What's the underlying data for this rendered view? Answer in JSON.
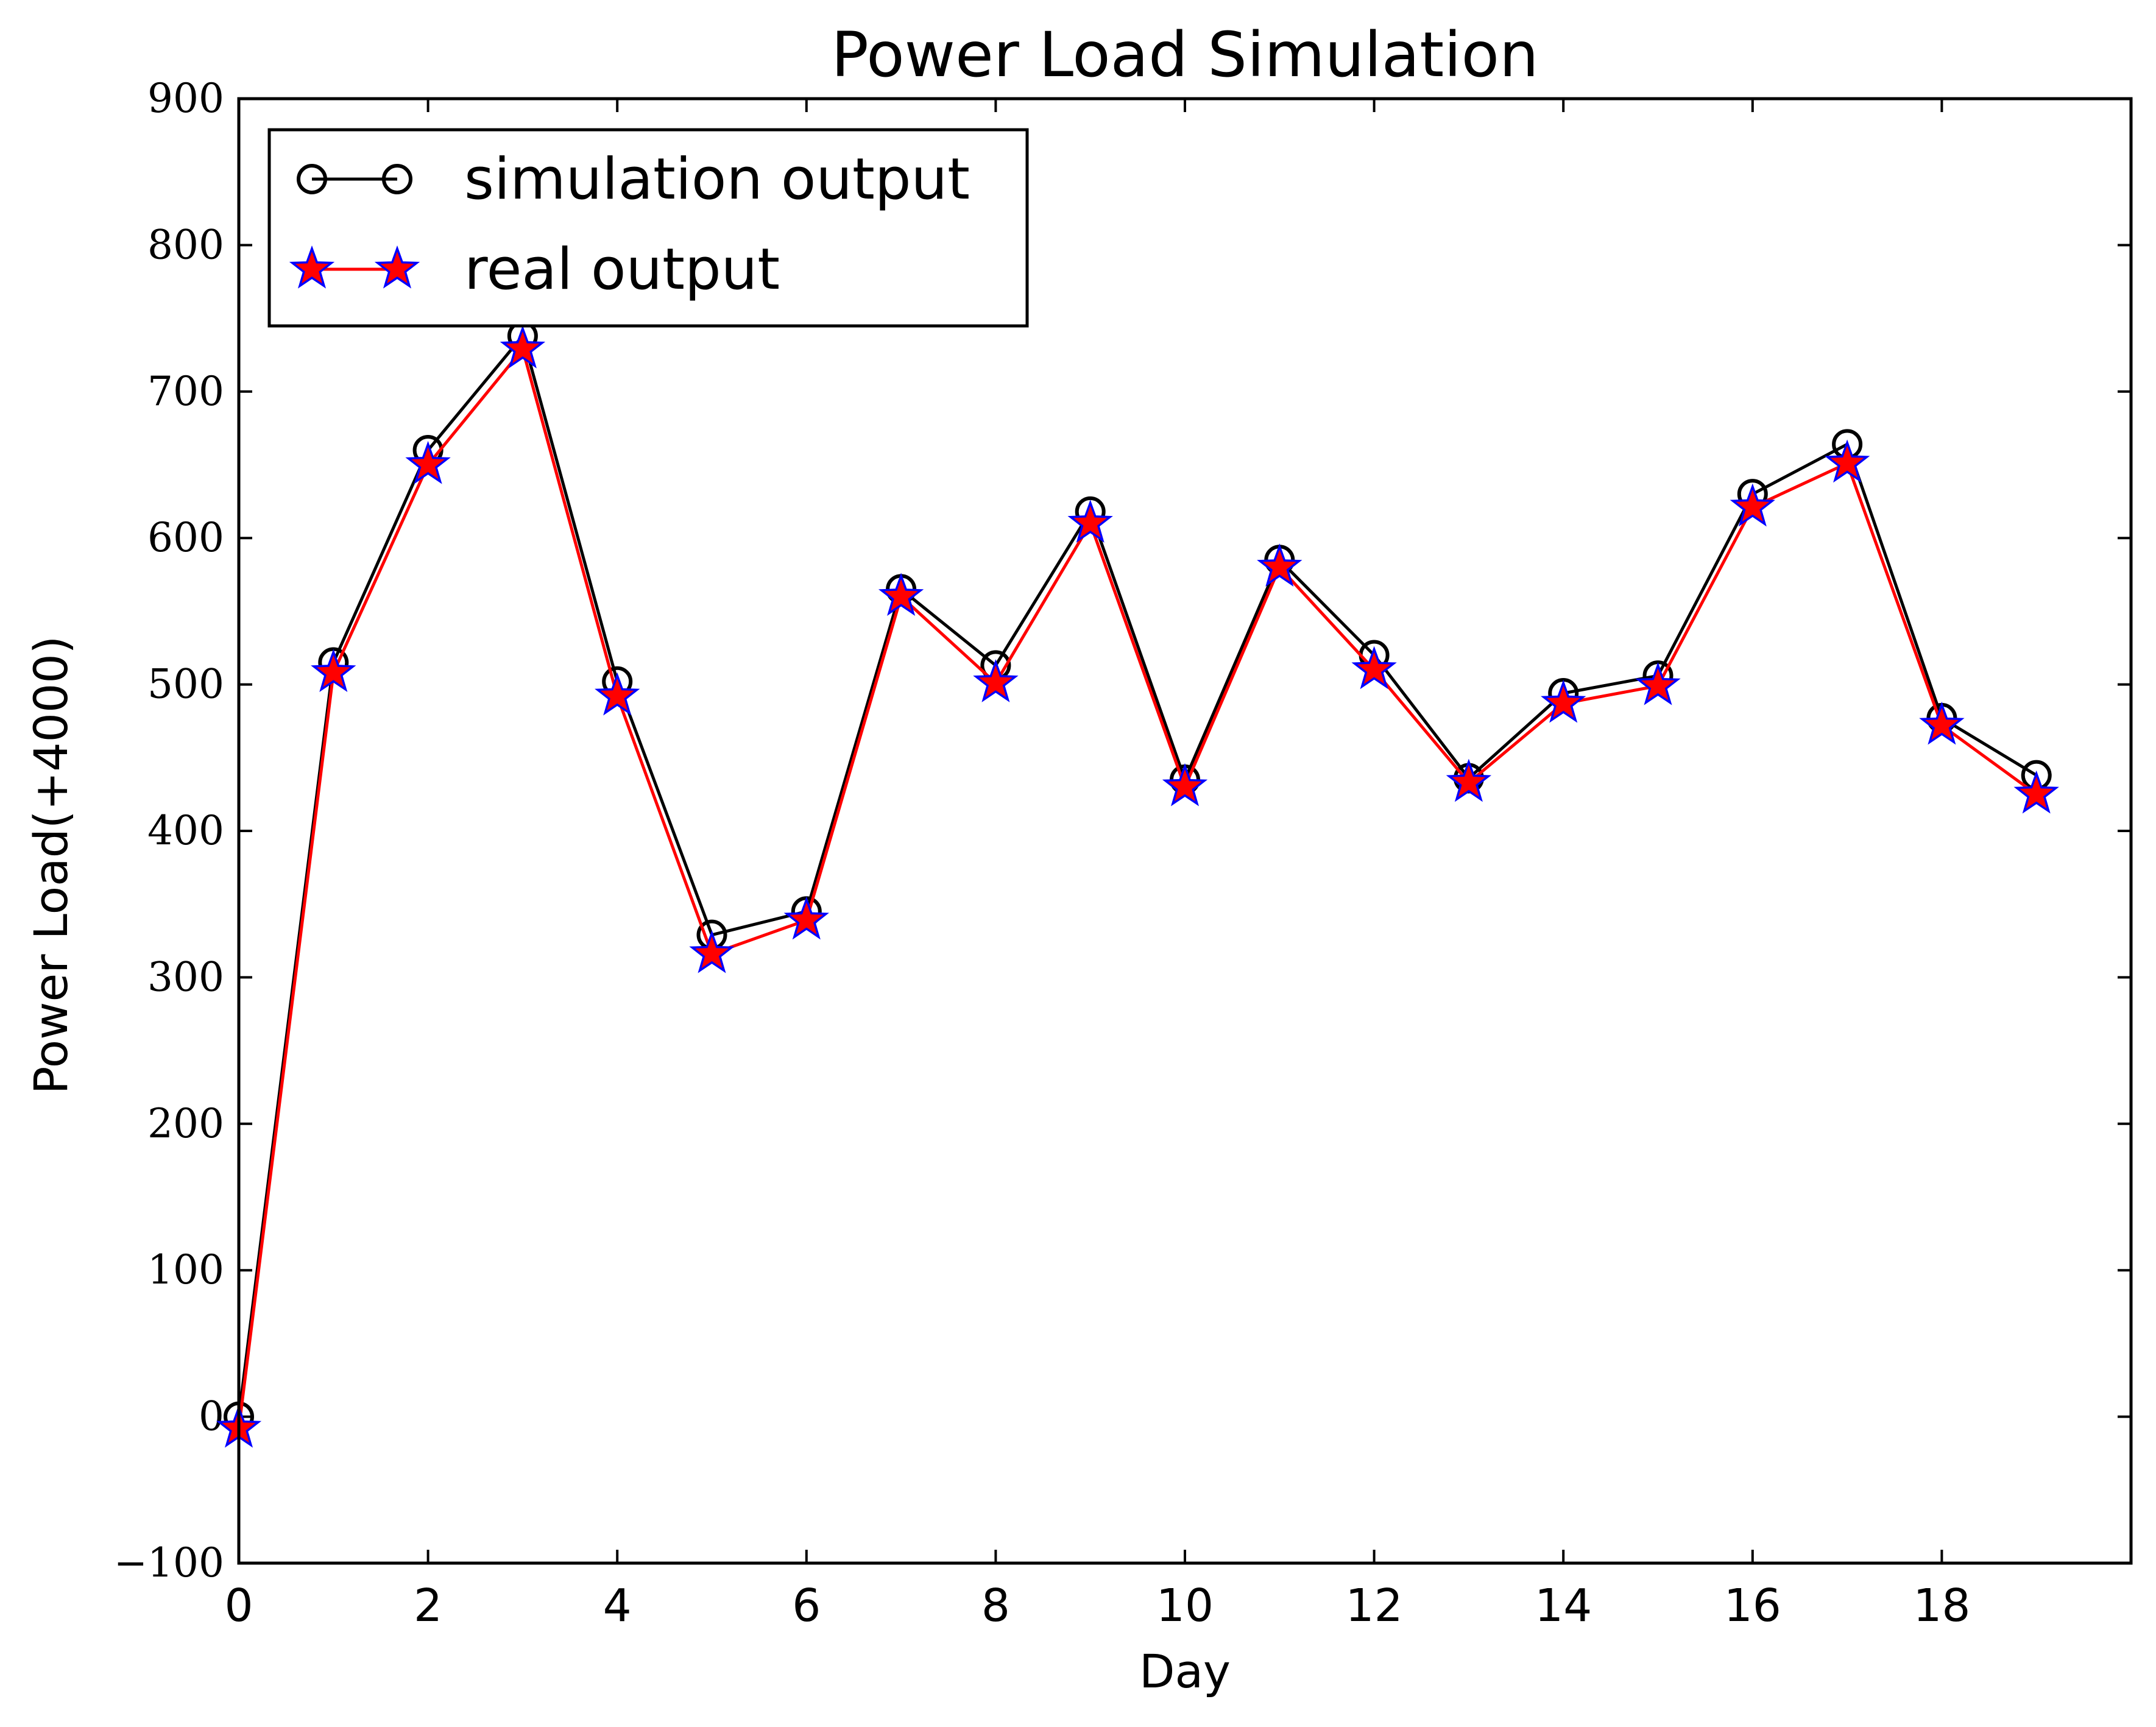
{
  "chart_data": {
    "type": "line",
    "title": "Power Load Simulation",
    "xlabel": "Day",
    "ylabel": "Power Load(+4000)",
    "xlim": [
      0,
      20
    ],
    "ylim": [
      -100,
      900
    ],
    "x_ticks": [
      0,
      2,
      4,
      6,
      8,
      10,
      12,
      14,
      16,
      18
    ],
    "x_tick_labels": [
      "0",
      "2",
      "4",
      "6",
      "8",
      "10",
      "12",
      "14",
      "16",
      "18"
    ],
    "y_ticks": [
      -100,
      0,
      100,
      200,
      300,
      400,
      500,
      600,
      700,
      800,
      900
    ],
    "y_tick_labels": [
      "−100",
      "0",
      "100",
      "200",
      "300",
      "400",
      "500",
      "600",
      "700",
      "800",
      "900"
    ],
    "grid": false,
    "legend_position": "upper-left",
    "x": [
      0,
      1,
      2,
      3,
      4,
      5,
      6,
      7,
      8,
      9,
      10,
      11,
      12,
      13,
      14,
      15,
      16,
      17,
      18,
      19
    ],
    "series": [
      {
        "name": "simulation output",
        "color": "#000000",
        "marker": "circle",
        "values": [
          0,
          515,
          660,
          738,
          502,
          329,
          345,
          565,
          513,
          618,
          435,
          585,
          520,
          436,
          494,
          506,
          630,
          664,
          477,
          438
        ]
      },
      {
        "name": "real output",
        "color": "#ff0000",
        "marker": "star",
        "marker_fill": "#ff0000",
        "marker_edge": "#0000ff",
        "values": [
          -8,
          508,
          650,
          729,
          492,
          316,
          339,
          560,
          501,
          610,
          430,
          580,
          510,
          433,
          487,
          499,
          621,
          651,
          472,
          425
        ]
      }
    ]
  }
}
